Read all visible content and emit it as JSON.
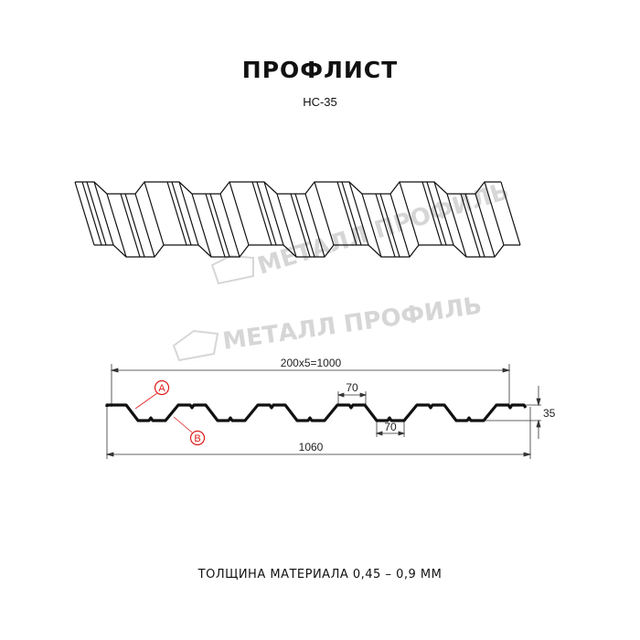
{
  "title": "ПРОФЛИСТ",
  "subtitle": "НС-35",
  "footer": "ТОЛЩИНА МАТЕРИАЛА 0,45 – 0,9 ММ",
  "watermark": "МЕТАЛЛ ПРОФИЛЬ",
  "dimensions": {
    "pitch_total": "200x5=1000",
    "total_width": "1060",
    "height": "35",
    "top_flat": "70",
    "bottom_flat": "70"
  },
  "callouts": {
    "a": "A",
    "b": "B"
  },
  "colors": {
    "line": "#111111",
    "callout": "#e01b1b",
    "watermark": "#d6d6d6"
  }
}
